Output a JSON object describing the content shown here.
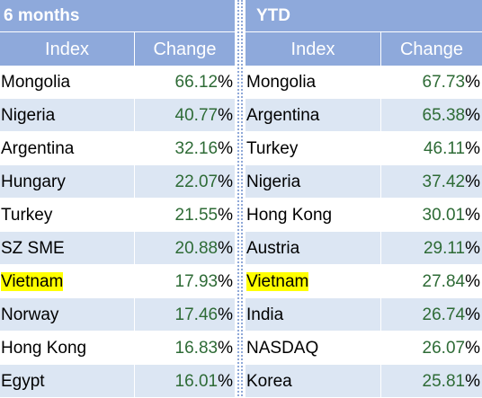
{
  "left": {
    "title": "6 months",
    "headers": {
      "index": "Index",
      "change": "Change"
    },
    "rows": [
      {
        "index": "Mongolia",
        "change": "66.12",
        "highlight": false
      },
      {
        "index": "Nigeria",
        "change": "40.77",
        "highlight": false
      },
      {
        "index": "Argentina",
        "change": "32.16",
        "highlight": false
      },
      {
        "index": "Hungary",
        "change": "22.07",
        "highlight": false
      },
      {
        "index": "Turkey",
        "change": "21.55",
        "highlight": false
      },
      {
        "index": "SZ SME",
        "change": "20.88",
        "highlight": false
      },
      {
        "index": "Vietnam",
        "change": "17.93",
        "highlight": true
      },
      {
        "index": "Norway",
        "change": "17.46",
        "highlight": false
      },
      {
        "index": "Hong Kong",
        "change": "16.83",
        "highlight": false
      },
      {
        "index": "Egypt",
        "change": "16.01",
        "highlight": false
      }
    ]
  },
  "right": {
    "title": "YTD",
    "headers": {
      "index": "Index",
      "change": "Change"
    },
    "rows": [
      {
        "index": "Mongolia",
        "change": "67.73",
        "highlight": false
      },
      {
        "index": "Argentina",
        "change": "65.38",
        "highlight": false
      },
      {
        "index": "Turkey",
        "change": "46.11",
        "highlight": false
      },
      {
        "index": "Nigeria",
        "change": "37.42",
        "highlight": false
      },
      {
        "index": "Hong Kong",
        "change": "30.01",
        "highlight": false
      },
      {
        "index": "Austria",
        "change": "29.11",
        "highlight": false
      },
      {
        "index": "Vietnam",
        "change": "27.84",
        "highlight": true
      },
      {
        "index": "India",
        "change": "26.74",
        "highlight": false
      },
      {
        "index": "NASDAQ",
        "change": "26.07",
        "highlight": false
      },
      {
        "index": "Korea",
        "change": "25.81",
        "highlight": false
      }
    ]
  },
  "percent_sign": "%",
  "colors": {
    "header_bg": "#8ea9db",
    "band_bg": "#dce6f3",
    "value_text": "#2e6b36",
    "highlight": "#ffff00"
  }
}
